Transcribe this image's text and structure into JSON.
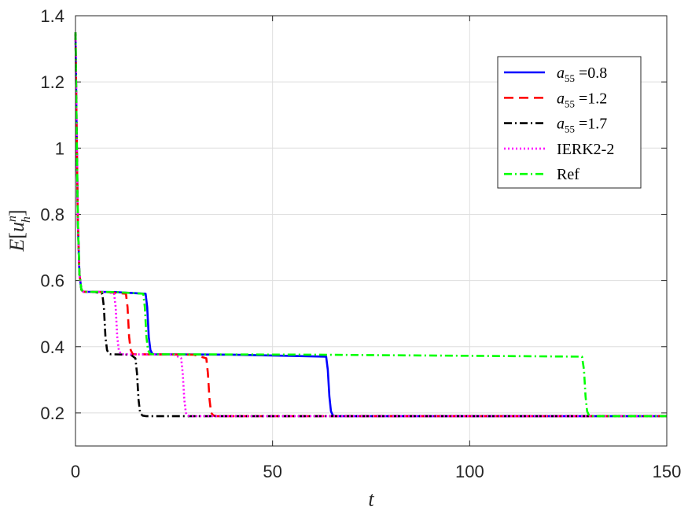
{
  "chart_data": {
    "type": "line",
    "xlabel": "t",
    "ylabel": "E[u_h^n]",
    "xlim": [
      0,
      150
    ],
    "ylim": [
      0.1,
      1.4
    ],
    "xticks": [
      0,
      50,
      100,
      150
    ],
    "yticks": [
      0.2,
      0.4,
      0.6,
      0.8,
      1,
      1.2,
      1.4
    ],
    "xtick_labels": [
      "0",
      "50",
      "100",
      "150"
    ],
    "ytick_labels": [
      "0.2",
      "0.4",
      "0.6",
      "0.8",
      "1",
      "1.2",
      "1.4"
    ],
    "grid": true,
    "legend_position": "top-right",
    "series": [
      {
        "name": "a55 =0.8",
        "legend_main": "a",
        "legend_sub": "55",
        "legend_rest": " =0.8",
        "color": "#0000ff",
        "dash": "solid",
        "x": [
          0,
          0.3,
          0.6,
          1.0,
          1.5,
          2,
          10,
          17.8,
          18.2,
          18.6,
          19.0,
          19.5,
          20,
          40,
          63.6,
          64.0,
          64.4,
          64.8,
          65.3,
          66,
          150
        ],
        "y": [
          1.35,
          1.05,
          0.78,
          0.62,
          0.572,
          0.566,
          0.565,
          0.56,
          0.52,
          0.43,
          0.39,
          0.378,
          0.377,
          0.376,
          0.37,
          0.33,
          0.25,
          0.205,
          0.192,
          0.19,
          0.19
        ]
      },
      {
        "name": "a55 =1.2",
        "legend_main": "a",
        "legend_sub": "55",
        "legend_rest": " =1.2",
        "color": "#ff0000",
        "dash": "dashed",
        "x": [
          0,
          0.3,
          0.6,
          1.0,
          1.5,
          2,
          8,
          12.8,
          13.2,
          13.6,
          14.0,
          14.5,
          15,
          30,
          33.2,
          33.6,
          34.0,
          34.4,
          35,
          36,
          150
        ],
        "y": [
          1.35,
          1.05,
          0.78,
          0.62,
          0.572,
          0.566,
          0.565,
          0.56,
          0.52,
          0.43,
          0.39,
          0.378,
          0.377,
          0.376,
          0.365,
          0.32,
          0.24,
          0.2,
          0.192,
          0.19,
          0.19
        ]
      },
      {
        "name": "a55 =1.7",
        "legend_main": "a",
        "legend_sub": "55",
        "legend_rest": " =1.7",
        "color": "#000000",
        "dash": "dashdot",
        "x": [
          0,
          0.3,
          0.6,
          1.0,
          1.5,
          2,
          5,
          6.8,
          7.2,
          7.6,
          8.0,
          8.5,
          9,
          14,
          15.2,
          15.6,
          16.0,
          16.4,
          17,
          18,
          150
        ],
        "y": [
          1.35,
          1.05,
          0.78,
          0.62,
          0.572,
          0.566,
          0.565,
          0.56,
          0.52,
          0.43,
          0.39,
          0.378,
          0.377,
          0.376,
          0.365,
          0.32,
          0.24,
          0.2,
          0.192,
          0.19,
          0.19
        ]
      },
      {
        "name": "IERK2-2",
        "legend_main": "IERK2-2",
        "legend_sub": "",
        "legend_rest": "",
        "color": "#ff00ff",
        "dash": "dotted",
        "x": [
          0,
          0.3,
          0.6,
          1.0,
          1.5,
          2,
          8,
          9.8,
          10.2,
          10.6,
          11.0,
          11.5,
          12,
          25,
          26.8,
          27.2,
          27.6,
          28.0,
          28.5,
          29,
          150
        ],
        "y": [
          1.35,
          1.05,
          0.78,
          0.62,
          0.572,
          0.566,
          0.565,
          0.56,
          0.52,
          0.43,
          0.39,
          0.378,
          0.377,
          0.376,
          0.365,
          0.32,
          0.24,
          0.2,
          0.192,
          0.19,
          0.19
        ]
      },
      {
        "name": "Ref",
        "legend_main": "Ref",
        "legend_sub": "",
        "legend_rest": "",
        "color": "#00ff00",
        "dash": "dashdot",
        "x": [
          0,
          0.3,
          0.6,
          1.0,
          1.5,
          2,
          10,
          17.2,
          17.6,
          18.0,
          18.4,
          18.9,
          19.5,
          60,
          128.5,
          129.0,
          129.4,
          129.8,
          130.3,
          131,
          150
        ],
        "y": [
          1.35,
          1.05,
          0.78,
          0.62,
          0.572,
          0.566,
          0.565,
          0.56,
          0.52,
          0.43,
          0.39,
          0.378,
          0.377,
          0.376,
          0.37,
          0.33,
          0.25,
          0.205,
          0.192,
          0.19,
          0.19
        ]
      }
    ]
  }
}
